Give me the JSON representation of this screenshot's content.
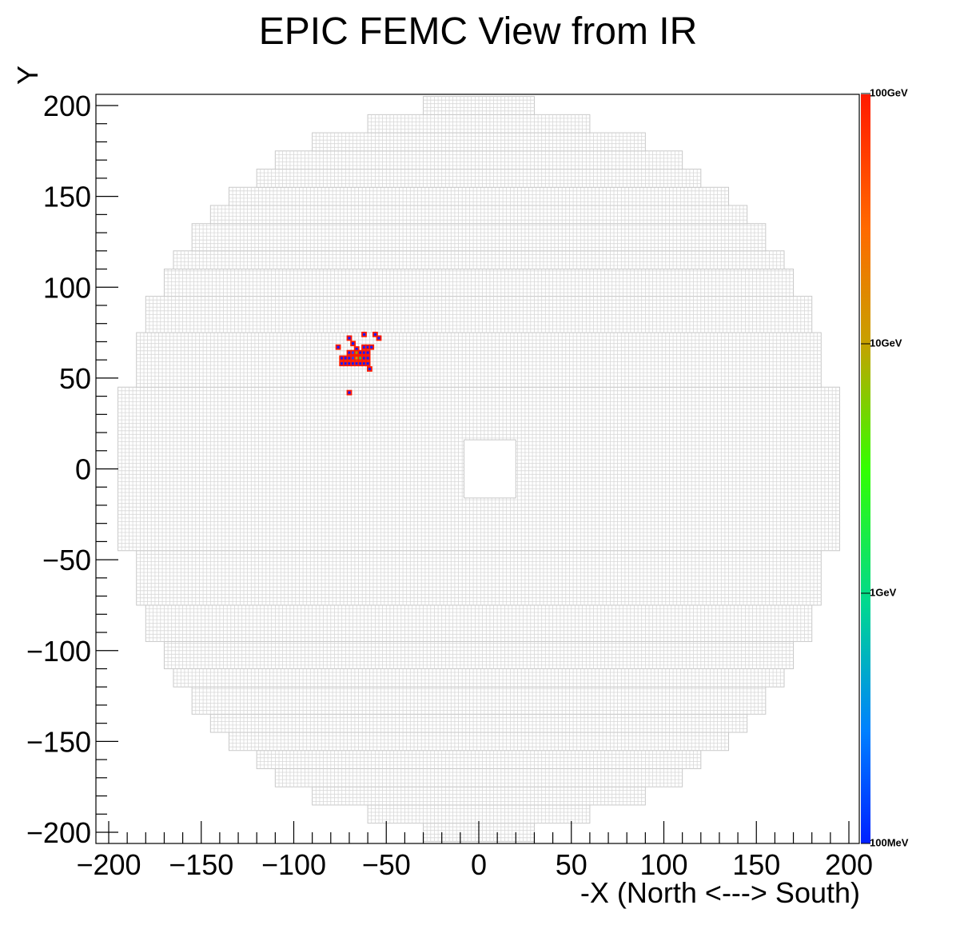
{
  "chart_data": {
    "type": "heatmap",
    "title": "EPIC FEMC View from IR",
    "xlabel": "-X (North <---> South)",
    "ylabel": "Y",
    "xlim": [
      -205,
      205
    ],
    "ylim": [
      -205,
      205
    ],
    "x_ticks": [
      "−200",
      "−150",
      "−100",
      "−50",
      "0",
      "50",
      "100",
      "150",
      "200"
    ],
    "y_ticks": [
      "200",
      "150",
      "100",
      "50",
      "0",
      "−50",
      "−100",
      "−150",
      "−200"
    ],
    "colorbar": {
      "scale": "log",
      "labels": [
        "100GeV",
        "10GeV",
        "1GeV",
        "100MeV"
      ],
      "colors": [
        "#ff1a00",
        "#c8a000",
        "#33ff00",
        "#00d890",
        "#0060ff",
        "#0020ff"
      ]
    },
    "detector": {
      "outline_y": [
        -205,
        205
      ],
      "beam_hole": {
        "x": [
          -8,
          20
        ],
        "y": [
          -16,
          16
        ]
      },
      "half_widths": [
        {
          "y": [
            -205,
            -195
          ],
          "x": [
            -30,
            30
          ]
        },
        {
          "y": [
            -195,
            -185
          ],
          "x": [
            -60,
            60
          ]
        },
        {
          "y": [
            -185,
            -175
          ],
          "x": [
            -90,
            90
          ]
        },
        {
          "y": [
            -175,
            -165
          ],
          "x": [
            -110,
            110
          ]
        },
        {
          "y": [
            -165,
            -155
          ],
          "x": [
            -120,
            120
          ]
        },
        {
          "y": [
            -155,
            -145
          ],
          "x": [
            -135,
            135
          ]
        },
        {
          "y": [
            -145,
            -135
          ],
          "x": [
            -145,
            145
          ]
        },
        {
          "y": [
            -135,
            -120
          ],
          "x": [
            -155,
            155
          ]
        },
        {
          "y": [
            -120,
            -110
          ],
          "x": [
            -165,
            165
          ]
        },
        {
          "y": [
            -110,
            -95
          ],
          "x": [
            -170,
            170
          ]
        },
        {
          "y": [
            -95,
            -75
          ],
          "x": [
            -180,
            180
          ]
        },
        {
          "y": [
            -75,
            -45
          ],
          "x": [
            -185,
            185
          ]
        },
        {
          "y": [
            -45,
            45
          ],
          "x": [
            -195,
            195
          ]
        },
        {
          "y": [
            45,
            75
          ],
          "x": [
            -185,
            185
          ]
        },
        {
          "y": [
            75,
            95
          ],
          "x": [
            -180,
            180
          ]
        },
        {
          "y": [
            95,
            110
          ],
          "x": [
            -170,
            170
          ]
        },
        {
          "y": [
            110,
            120
          ],
          "x": [
            -165,
            165
          ]
        },
        {
          "y": [
            120,
            135
          ],
          "x": [
            -155,
            155
          ]
        },
        {
          "y": [
            135,
            145
          ],
          "x": [
            -145,
            145
          ]
        },
        {
          "y": [
            145,
            155
          ],
          "x": [
            -135,
            135
          ]
        },
        {
          "y": [
            155,
            165
          ],
          "x": [
            -120,
            120
          ]
        },
        {
          "y": [
            165,
            175
          ],
          "x": [
            -110,
            110
          ]
        },
        {
          "y": [
            175,
            185
          ],
          "x": [
            -90,
            90
          ]
        },
        {
          "y": [
            185,
            195
          ],
          "x": [
            -60,
            60
          ]
        },
        {
          "y": [
            195,
            205
          ],
          "x": [
            -30,
            30
          ]
        }
      ]
    },
    "hits": [
      {
        "x": -70,
        "y": 42,
        "color": "#1a1aff"
      },
      {
        "x": -76,
        "y": 67,
        "color": "#1a1aff"
      },
      {
        "x": -70,
        "y": 72,
        "color": "#1a1aff"
      },
      {
        "x": -68,
        "y": 69,
        "color": "#1a1aff"
      },
      {
        "x": -62,
        "y": 74,
        "color": "#1a1aff"
      },
      {
        "x": -56,
        "y": 74,
        "color": "#1a1aff"
      },
      {
        "x": -54,
        "y": 72,
        "color": "#1a1aff"
      },
      {
        "x": -66,
        "y": 66,
        "color": "#1a1aff"
      },
      {
        "x": -62,
        "y": 67,
        "color": "#1a1aff"
      },
      {
        "x": -60,
        "y": 67,
        "color": "#1a1aff"
      },
      {
        "x": -58,
        "y": 67,
        "color": "#1a1aff"
      },
      {
        "x": -70,
        "y": 64,
        "color": "#1a1aff"
      },
      {
        "x": -68,
        "y": 64,
        "color": "#3a3aff"
      },
      {
        "x": -66,
        "y": 64,
        "color": "#9aa000"
      },
      {
        "x": -64,
        "y": 64,
        "color": "#1a1aff"
      },
      {
        "x": -62,
        "y": 64,
        "color": "#1a1aff"
      },
      {
        "x": -60,
        "y": 64,
        "color": "#1a1aff"
      },
      {
        "x": -74,
        "y": 61,
        "color": "#1a1aff"
      },
      {
        "x": -72,
        "y": 61,
        "color": "#1a1aff"
      },
      {
        "x": -70,
        "y": 61,
        "color": "#1a1aff"
      },
      {
        "x": -68,
        "y": 61,
        "color": "#2a40ff"
      },
      {
        "x": -66,
        "y": 61,
        "color": "#c8a000"
      },
      {
        "x": -64,
        "y": 61,
        "color": "#20c060"
      },
      {
        "x": -62,
        "y": 61,
        "color": "#1a1aff"
      },
      {
        "x": -60,
        "y": 61,
        "color": "#1a1aff"
      },
      {
        "x": -74,
        "y": 58,
        "color": "#1a1aff"
      },
      {
        "x": -72,
        "y": 58,
        "color": "#1a1aff"
      },
      {
        "x": -70,
        "y": 58,
        "color": "#1a1aff"
      },
      {
        "x": -68,
        "y": 58,
        "color": "#1a1aff"
      },
      {
        "x": -66,
        "y": 58,
        "color": "#1a1aff"
      },
      {
        "x": -64,
        "y": 58,
        "color": "#1a1aff"
      },
      {
        "x": -62,
        "y": 58,
        "color": "#1a1aff"
      },
      {
        "x": -60,
        "y": 58,
        "color": "#1a1aff"
      },
      {
        "x": -59,
        "y": 55,
        "color": "#1a1aff"
      }
    ]
  }
}
